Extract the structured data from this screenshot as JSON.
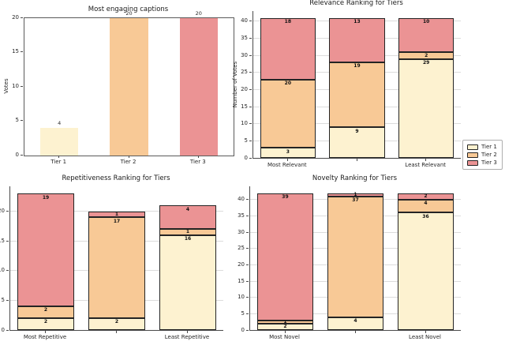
{
  "palette": {
    "tier1": "#FDF2D0",
    "tier2": "#F8C996",
    "tier3": "#EB9394",
    "segment_edge": "#242424",
    "grid": "#DCDCDC",
    "spine": "#4A4A4A"
  },
  "legend": {
    "entries": [
      {
        "label": "Tier 1",
        "color": "#FDF2D0"
      },
      {
        "label": "Tier 2",
        "color": "#F8C996"
      },
      {
        "label": "Tier 3",
        "color": "#EB9394"
      }
    ]
  },
  "chart_data": [
    {
      "type": "bar",
      "title": "Most engaging captions",
      "ylabel": "Votes",
      "categories": [
        "Tier 1",
        "Tier 2",
        "Tier 3"
      ],
      "values": [
        4,
        20,
        20
      ],
      "bar_colors": [
        "#FDF2D0",
        "#F8C996",
        "#EB9394"
      ],
      "ylim": [
        0,
        20
      ],
      "yticks": [
        0,
        5,
        10,
        15,
        20
      ],
      "grid": false,
      "box": true
    },
    {
      "type": "stacked-bar",
      "title": "Relevance Ranking for Tiers",
      "ylabel": "Number of Votes",
      "categories": [
        "Most Relevant",
        "",
        "Least Relevant"
      ],
      "series": [
        {
          "name": "Tier 1",
          "values": [
            3,
            9,
            29
          ]
        },
        {
          "name": "Tier 2",
          "values": [
            20,
            19,
            2
          ]
        },
        {
          "name": "Tier 3",
          "values": [
            18,
            13,
            10
          ]
        }
      ],
      "ylim": [
        0,
        43
      ],
      "yticks": [
        0,
        5,
        10,
        15,
        20,
        25,
        30,
        35,
        40
      ],
      "grid": true,
      "box": false
    },
    {
      "type": "stacked-bar",
      "title": "Repetitiveness Ranking for Tiers",
      "ylabel": "",
      "categories": [
        "Most Repetitive",
        "",
        "Least Repetitive"
      ],
      "series": [
        {
          "name": "Tier 1",
          "values": [
            2,
            2,
            16
          ]
        },
        {
          "name": "Tier 2",
          "values": [
            2,
            17,
            1
          ]
        },
        {
          "name": "Tier 3",
          "values": [
            19,
            1,
            4
          ]
        }
      ],
      "ylim": [
        0,
        24.2
      ],
      "yticks": [
        0,
        5,
        10,
        15,
        20
      ],
      "grid": true,
      "box": false
    },
    {
      "type": "stacked-bar",
      "title": "Novelty Ranking for Tiers",
      "ylabel": "",
      "categories": [
        "Most Novel",
        "",
        "Least Novel"
      ],
      "series": [
        {
          "name": "Tier 1",
          "values": [
            2,
            4,
            36
          ]
        },
        {
          "name": "Tier 2",
          "values": [
            1,
            37,
            4
          ]
        },
        {
          "name": "Tier 3",
          "values": [
            39,
            1,
            2
          ]
        }
      ],
      "ylim": [
        0,
        44.1
      ],
      "yticks": [
        0,
        5,
        10,
        15,
        20,
        25,
        30,
        35,
        40
      ],
      "grid": true,
      "box": false
    }
  ]
}
